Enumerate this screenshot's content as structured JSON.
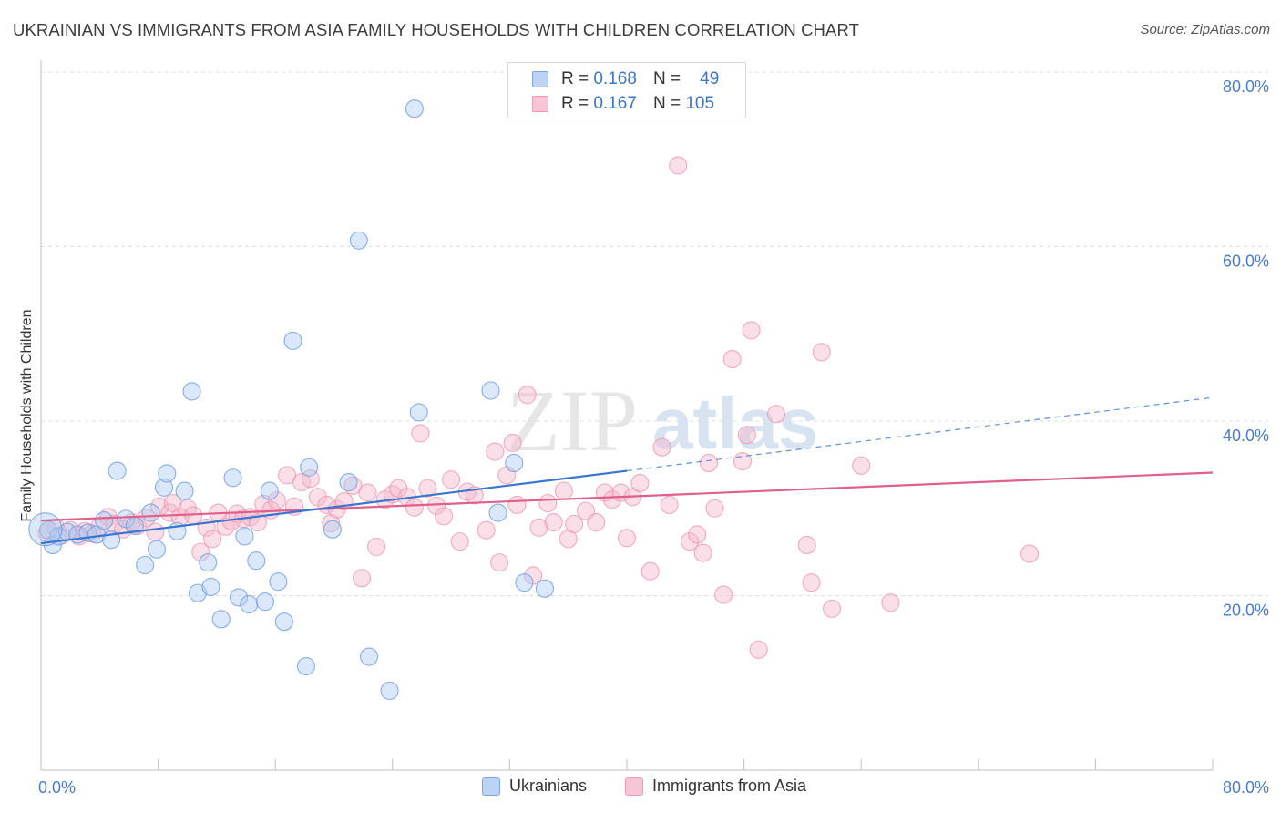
{
  "title": "UKRAINIAN VS IMMIGRANTS FROM ASIA FAMILY HOUSEHOLDS WITH CHILDREN CORRELATION CHART",
  "source": "Source: ZipAtlas.com",
  "watermark": {
    "zip": "ZIP",
    "atlas": "atlas"
  },
  "colors": {
    "blue": "#4a7fd6",
    "blue_fill": "#aecbf2",
    "blue_line": "#3a76d0",
    "pink": "#e8668f",
    "pink_fill": "#f5b8cc",
    "pink_line": "#e0608a",
    "axis_text": "#4a7cc9",
    "grid": "#dddddd"
  },
  "legend_top": [
    {
      "r_label": "R =",
      "r_value": "0.168",
      "n_label": "N =",
      "n_value": "49"
    },
    {
      "r_label": "R =",
      "r_value": "0.167",
      "n_label": "N =",
      "n_value": "105"
    }
  ],
  "legend_bottom": [
    "Ukrainians",
    "Immigrants from Asia"
  ],
  "chart_data": {
    "type": "scatter",
    "title": "UKRAINIAN VS IMMIGRANTS FROM ASIA FAMILY HOUSEHOLDS WITH CHILDREN CORRELATION CHART",
    "xlabel": "",
    "ylabel": "Family Households with Children",
    "xlim": [
      0,
      80
    ],
    "ylim": [
      0,
      80
    ],
    "x_tick_labels": [
      "0.0%",
      "80.0%"
    ],
    "y_tick_labels": [
      {
        "value": 20,
        "label": "20.0%"
      },
      {
        "value": 40,
        "label": "40.0%"
      },
      {
        "value": 60,
        "label": "60.0%"
      },
      {
        "value": 80,
        "label": "80.0%"
      }
    ],
    "x_minor_ticks": [
      8,
      16,
      24,
      32,
      40,
      48,
      56,
      64,
      72,
      80
    ],
    "series": [
      {
        "name": "Ukrainians",
        "R": 0.168,
        "N": 49,
        "trend": {
          "x0": 0,
          "y0": 26.0,
          "x1": 40,
          "y1": 34.3,
          "dash_x1": 80,
          "dash_y1": 42.7
        },
        "points": [
          [
            0.5,
            27.5
          ],
          [
            0.8,
            25.8
          ],
          [
            1.2,
            26.8
          ],
          [
            1.8,
            27.3
          ],
          [
            2.5,
            27.0
          ],
          [
            3.2,
            27.2
          ],
          [
            3.8,
            27.0
          ],
          [
            4.3,
            28.6
          ],
          [
            4.8,
            26.4
          ],
          [
            5.2,
            34.3
          ],
          [
            5.8,
            28.8
          ],
          [
            6.4,
            28.0
          ],
          [
            7.1,
            23.5
          ],
          [
            7.5,
            29.5
          ],
          [
            7.9,
            25.3
          ],
          [
            8.4,
            32.4
          ],
          [
            8.6,
            34.0
          ],
          [
            9.3,
            27.4
          ],
          [
            9.8,
            32.0
          ],
          [
            10.3,
            43.4
          ],
          [
            10.7,
            20.3
          ],
          [
            11.4,
            23.8
          ],
          [
            11.6,
            21.0
          ],
          [
            12.3,
            17.3
          ],
          [
            13.1,
            33.5
          ],
          [
            13.5,
            19.8
          ],
          [
            13.9,
            26.8
          ],
          [
            14.2,
            19.0
          ],
          [
            14.7,
            24.0
          ],
          [
            15.3,
            19.3
          ],
          [
            15.6,
            32.0
          ],
          [
            16.2,
            21.6
          ],
          [
            16.6,
            17.0
          ],
          [
            17.2,
            49.2
          ],
          [
            18.1,
            11.9
          ],
          [
            18.3,
            34.7
          ],
          [
            19.9,
            27.6
          ],
          [
            21.0,
            33.0
          ],
          [
            21.7,
            60.7
          ],
          [
            22.4,
            13.0
          ],
          [
            23.8,
            9.1
          ],
          [
            25.5,
            75.8
          ],
          [
            25.8,
            41.0
          ],
          [
            30.7,
            43.5
          ],
          [
            31.2,
            29.5
          ],
          [
            32.3,
            35.2
          ],
          [
            33.0,
            21.5
          ],
          [
            34.4,
            20.8
          ],
          [
            0.3,
            27.6
          ]
        ]
      },
      {
        "name": "Immigrants from Asia",
        "R": 0.167,
        "N": 105,
        "trend": {
          "x0": 0,
          "y0": 28.6,
          "x1": 80,
          "y1": 34.1
        },
        "points": [
          [
            0.4,
            27.2
          ],
          [
            1.0,
            27.8
          ],
          [
            1.4,
            26.9
          ],
          [
            2.0,
            27.5
          ],
          [
            2.6,
            26.8
          ],
          [
            3.0,
            27.4
          ],
          [
            3.5,
            27.1
          ],
          [
            4.0,
            27.9
          ],
          [
            4.6,
            29.0
          ],
          [
            5.0,
            28.2
          ],
          [
            5.6,
            27.6
          ],
          [
            6.2,
            28.4
          ],
          [
            6.6,
            28.0
          ],
          [
            7.2,
            28.9
          ],
          [
            7.8,
            27.3
          ],
          [
            8.1,
            30.2
          ],
          [
            8.8,
            29.5
          ],
          [
            9.0,
            30.6
          ],
          [
            9.5,
            29.0
          ],
          [
            10.0,
            30.0
          ],
          [
            10.4,
            29.2
          ],
          [
            10.9,
            25.0
          ],
          [
            11.3,
            27.8
          ],
          [
            11.7,
            26.5
          ],
          [
            12.1,
            29.5
          ],
          [
            12.6,
            27.9
          ],
          [
            13.0,
            28.5
          ],
          [
            13.4,
            29.4
          ],
          [
            13.8,
            28.8
          ],
          [
            14.3,
            29.0
          ],
          [
            14.8,
            28.4
          ],
          [
            15.2,
            30.5
          ],
          [
            15.7,
            29.8
          ],
          [
            16.1,
            30.9
          ],
          [
            16.8,
            33.8
          ],
          [
            17.3,
            30.2
          ],
          [
            17.8,
            33.0
          ],
          [
            18.4,
            33.4
          ],
          [
            18.9,
            31.3
          ],
          [
            19.5,
            30.4
          ],
          [
            19.8,
            28.3
          ],
          [
            20.2,
            29.9
          ],
          [
            20.7,
            30.8
          ],
          [
            21.3,
            32.6
          ],
          [
            21.9,
            22.0
          ],
          [
            22.3,
            31.8
          ],
          [
            22.9,
            25.6
          ],
          [
            23.5,
            31.0
          ],
          [
            24.0,
            31.6
          ],
          [
            24.4,
            32.3
          ],
          [
            25.0,
            31.3
          ],
          [
            25.5,
            30.1
          ],
          [
            25.9,
            38.6
          ],
          [
            26.4,
            32.3
          ],
          [
            27.0,
            30.3
          ],
          [
            27.5,
            29.1
          ],
          [
            28.0,
            33.3
          ],
          [
            28.6,
            26.2
          ],
          [
            29.1,
            31.9
          ],
          [
            29.6,
            31.5
          ],
          [
            30.4,
            27.5
          ],
          [
            31.0,
            36.5
          ],
          [
            31.3,
            23.8
          ],
          [
            31.8,
            33.8
          ],
          [
            32.2,
            37.5
          ],
          [
            32.5,
            30.4
          ],
          [
            33.2,
            43.0
          ],
          [
            33.6,
            22.3
          ],
          [
            34.0,
            27.8
          ],
          [
            34.6,
            30.6
          ],
          [
            35.0,
            28.4
          ],
          [
            35.7,
            32.0
          ],
          [
            36.0,
            26.5
          ],
          [
            36.4,
            28.2
          ],
          [
            37.2,
            29.7
          ],
          [
            37.9,
            28.4
          ],
          [
            38.5,
            31.8
          ],
          [
            39.0,
            31.0
          ],
          [
            39.6,
            31.8
          ],
          [
            40.0,
            26.6
          ],
          [
            40.4,
            31.3
          ],
          [
            40.9,
            32.9
          ],
          [
            41.6,
            22.8
          ],
          [
            42.4,
            37.0
          ],
          [
            42.9,
            30.4
          ],
          [
            43.5,
            69.3
          ],
          [
            44.3,
            26.2
          ],
          [
            44.8,
            27.0
          ],
          [
            45.2,
            24.9
          ],
          [
            45.6,
            35.2
          ],
          [
            46.0,
            30.0
          ],
          [
            46.6,
            20.1
          ],
          [
            47.2,
            47.1
          ],
          [
            47.9,
            35.4
          ],
          [
            48.2,
            38.4
          ],
          [
            48.5,
            50.4
          ],
          [
            49.0,
            13.8
          ],
          [
            50.2,
            40.8
          ],
          [
            52.3,
            25.8
          ],
          [
            52.6,
            21.5
          ],
          [
            53.3,
            47.9
          ],
          [
            54.0,
            18.5
          ],
          [
            56.0,
            34.9
          ],
          [
            58.0,
            19.2
          ],
          [
            67.5,
            24.8
          ]
        ]
      }
    ]
  }
}
